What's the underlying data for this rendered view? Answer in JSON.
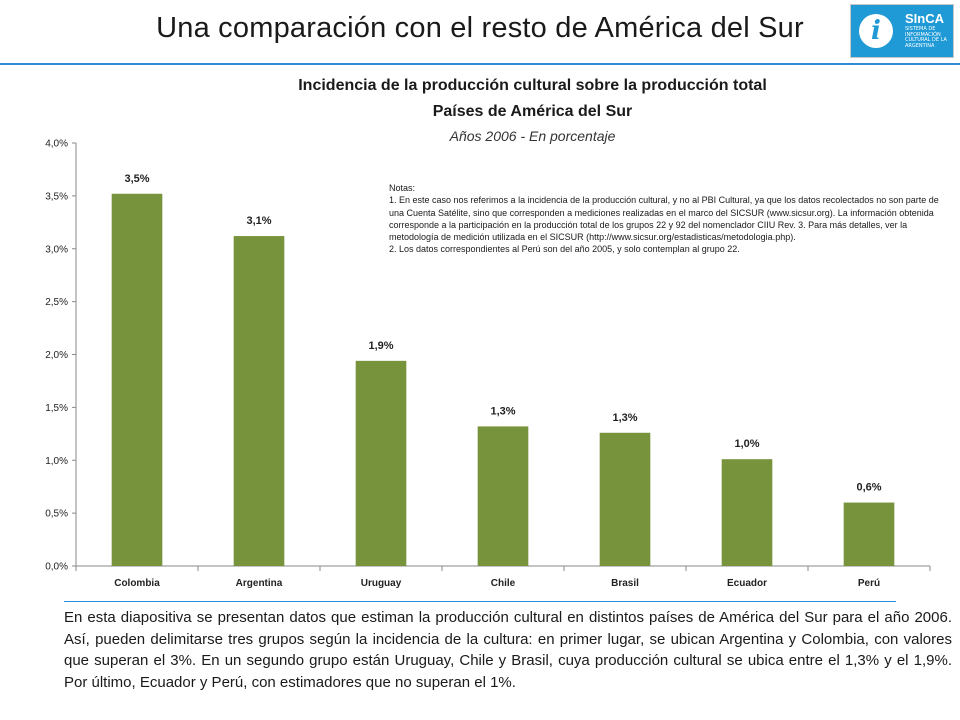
{
  "slide": {
    "title": "Una comparación con el resto de América del Sur",
    "logo_name": "SInCA",
    "logo_sub": "SISTEMA DE INFORMACIÓN CULTURAL DE LA ARGENTINA",
    "logo_glyph": "i"
  },
  "colors": {
    "bar": "#77933c",
    "rule": "#2e8bd6",
    "logo_bg": "#1f9ad6"
  },
  "notes": {
    "heading": "Notas:",
    "note1": "1. En este caso nos referimos a la incidencia de la producción cultural, y no al PBI Cultural, ya que los datos recolectados no son parte de una Cuenta Satélite, sino que corresponden a mediciones realizadas en el marco del SICSUR (www.sicsur.org). La información obtenida corresponde a la participación en la producción total de los grupos 22 y 92 del nomenclador CIIU Rev. 3. Para más detalles, ver la metodología de medición utilizada en el SICSUR (http://www.sicsur.org/estadisticas/metodologia.php).",
    "note2": "2. Los datos correspondientes al Perú son del año 2005, y solo contemplan al grupo 22."
  },
  "description": "En esta diapositiva se presentan datos que estiman la producción cultural en distintos países de América del Sur para el año 2006. Así, pueden delimitarse tres grupos según la incidencia de la cultura: en primer lugar, se ubican Argentina y Colombia, con valores que superan el 3%. En un segundo grupo están Uruguay, Chile y Brasil, cuya producción cultural se ubica entre el 1,3% y el 1,9%. Por último, Ecuador y Perú, con estimadores que no superan el 1%.",
  "chart_data": {
    "type": "bar",
    "title": "Incidencia de la producción cultural sobre la producción total",
    "subtitle": "Países de América del Sur",
    "caption": "Años  2006 - En porcentaje",
    "categories": [
      "Colombia",
      "Argentina",
      "Uruguay",
      "Chile",
      "Brasil",
      "Ecuador",
      "Perú"
    ],
    "values": [
      3.52,
      3.12,
      1.94,
      1.32,
      1.26,
      1.01,
      0.6
    ],
    "data_labels": [
      "3,5%",
      "3,1%",
      "1,9%",
      "1,3%",
      "1,3%",
      "1,0%",
      "0,6%"
    ],
    "ylim": [
      0,
      4
    ],
    "yticks": [
      0,
      0.5,
      1,
      1.5,
      2,
      2.5,
      3,
      3.5,
      4
    ],
    "ytick_labels": [
      "0,0%",
      "0,5%",
      "1,0%",
      "1,5%",
      "2,0%",
      "2,5%",
      "3,0%",
      "3,5%",
      "4,0%"
    ],
    "xlabel": "",
    "ylabel": "",
    "grid": false,
    "legend": "none"
  }
}
